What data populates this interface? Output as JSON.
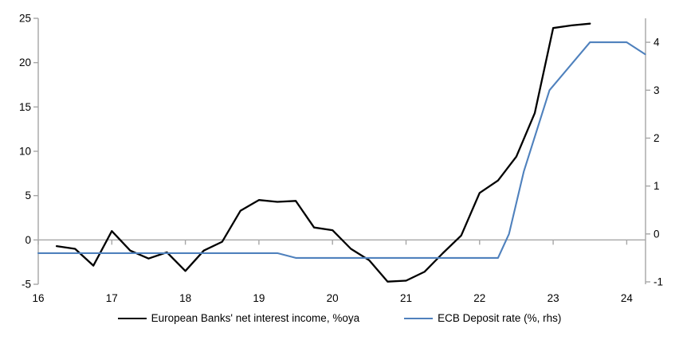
{
  "chart_data": {
    "type": "line",
    "title": "",
    "xlabel": "",
    "ylabel_left": "",
    "ylabel_right": "",
    "x_axis": {
      "ticks": [
        16,
        17,
        18,
        19,
        20,
        21,
        22,
        23,
        24
      ],
      "range": [
        16,
        24.25
      ]
    },
    "left_axis": {
      "ticks": [
        -5,
        0,
        5,
        10,
        15,
        20,
        25
      ],
      "range": [
        -5,
        25
      ]
    },
    "right_axis": {
      "ticks": [
        -1,
        0,
        1,
        2,
        3,
        4
      ],
      "range": [
        -1.05,
        4.5
      ]
    },
    "grid": "zero-line-only",
    "legend_position": "bottom",
    "series": [
      {
        "name": "European Banks' net interest income, %oya",
        "axis": "left",
        "color": "#000000",
        "frequency": "quarterly",
        "x": [
          16.25,
          16.5,
          16.75,
          17.0,
          17.25,
          17.5,
          17.75,
          18.0,
          18.25,
          18.5,
          18.75,
          19.0,
          19.25,
          19.5,
          19.75,
          20.0,
          20.25,
          20.5,
          20.75,
          21.0,
          21.25,
          21.5,
          21.75,
          22.0,
          22.25,
          22.5,
          22.75,
          23.0,
          23.25,
          23.5
        ],
        "values": [
          -0.7,
          -1.0,
          -2.9,
          1.0,
          -1.2,
          -2.1,
          -1.4,
          -3.5,
          -1.2,
          -0.2,
          3.3,
          4.5,
          4.3,
          4.4,
          1.4,
          1.1,
          -1.0,
          -2.3,
          -4.7,
          -4.6,
          -3.6,
          -1.5,
          0.5,
          5.3,
          6.7,
          9.4,
          14.3,
          23.9,
          24.2,
          24.4
        ]
      },
      {
        "name": "ECB Deposit rate (%, rhs)",
        "axis": "right",
        "color": "#4F81BD",
        "frequency": "stepped",
        "x": [
          16.0,
          19.25,
          19.5,
          22.25,
          22.4,
          22.6,
          22.95,
          23.5,
          24.0,
          24.25
        ],
        "values": [
          -0.4,
          -0.4,
          -0.5,
          -0.5,
          0.0,
          1.3,
          3.0,
          4.0,
          4.0,
          3.75
        ]
      }
    ]
  },
  "legend": {
    "series1_label": "European Banks' net interest income, %oya",
    "series2_label": "ECB Deposit rate (%, rhs)"
  },
  "colors": {
    "black_line": "#000000",
    "blue_line": "#4F81BD",
    "axis_gray": "#A6A6A6",
    "background": "#FFFFFF",
    "text": "#000000"
  }
}
